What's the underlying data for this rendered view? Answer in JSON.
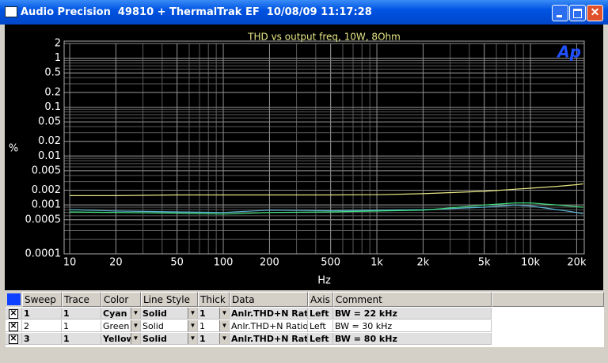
{
  "window": {
    "title": "Audio Precision  49810 + ThermalTrak EF  10/08/09 11:17:28"
  },
  "chart_data": {
    "type": "line",
    "title": "THD vs output freq, 10W, 8Ohm",
    "x_label": "Hz",
    "y_label": "%",
    "logo": "Ap",
    "x": [
      10,
      20,
      50,
      100,
      200,
      500,
      1000,
      2000,
      5000,
      8000,
      10000,
      15000,
      20000,
      22000
    ],
    "series": [
      {
        "name": "Cyan",
        "color": "#5ab8d8",
        "values": [
          0.0008,
          0.00075,
          0.00072,
          0.0007,
          0.00078,
          0.00076,
          0.00078,
          0.0008,
          0.0009,
          0.001,
          0.00095,
          0.0008,
          0.0007,
          0.00066
        ]
      },
      {
        "name": "Green",
        "color": "#3ee07a",
        "values": [
          0.00072,
          0.0007,
          0.00068,
          0.00065,
          0.0007,
          0.00072,
          0.00075,
          0.00078,
          0.001,
          0.0011,
          0.0011,
          0.001,
          0.00092,
          0.0009
        ]
      },
      {
        "name": "Yellow",
        "color": "#e8e888",
        "values": [
          0.00155,
          0.00155,
          0.0016,
          0.0016,
          0.0016,
          0.0016,
          0.00162,
          0.0017,
          0.0019,
          0.0021,
          0.0022,
          0.0024,
          0.0026,
          0.0027
        ]
      }
    ],
    "xlim": [
      9.2,
      22400
    ],
    "ylim": [
      0.0001,
      2
    ],
    "xlog": true,
    "ylog": true,
    "grid": true,
    "xticks": [
      10,
      20,
      50,
      100,
      200,
      500,
      {
        "value": 1000,
        "label": "1k"
      },
      {
        "value": 2000,
        "label": "2k"
      },
      {
        "value": 5000,
        "label": "5k"
      },
      {
        "value": 10000,
        "label": "10k"
      },
      {
        "value": 20000,
        "label": "20k"
      }
    ],
    "yticks": [
      2,
      1,
      0.5,
      0.2,
      0.1,
      0.05,
      0.02,
      0.01,
      0.005,
      0.002,
      0.001,
      0.0005,
      0.0001
    ]
  },
  "table": {
    "headers": [
      "Sweep",
      "Trace",
      "Color",
      "Line Style",
      "Thick",
      "Data",
      "Axis",
      "Comment"
    ],
    "rows": [
      {
        "sweep": "1",
        "trace": "1",
        "line_style": "Solid",
        "thick": "1",
        "data": "Anlr.THD+N Ratio",
        "axis": "Left",
        "comment": "BW = 22 kHz",
        "bold": true
      },
      {
        "sweep": "2",
        "trace": "1",
        "line_style": "Solid",
        "thick": "1",
        "data": "Anlr.THD+N Ratio",
        "axis": "Left",
        "comment": "BW = 30 kHz",
        "bold": false
      },
      {
        "sweep": "3",
        "trace": "1",
        "line_style": "Solid",
        "thick": "1",
        "data": "Anlr.THD+N Ratio",
        "axis": "Left",
        "comment": "BW = 80 kHz",
        "bold": true
      }
    ]
  }
}
